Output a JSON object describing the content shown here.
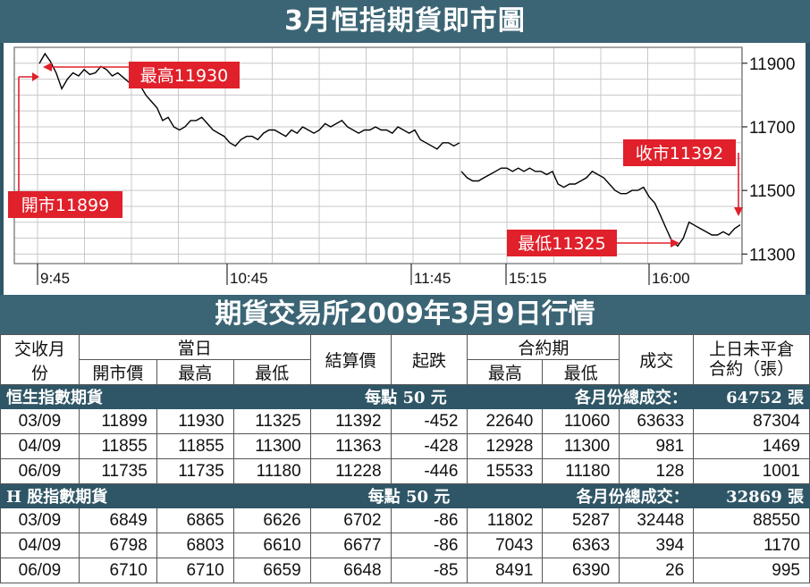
{
  "chart_title": "3月恒指期貨即市圖",
  "table_title": "期貨交易所2009年3月9日行情",
  "chart_data": {
    "type": "line",
    "x_ticks": [
      "9:45",
      "10:45",
      "11:45",
      "15:15",
      "16:00"
    ],
    "y_ticks": [
      11300,
      11500,
      11700,
      11900
    ],
    "ylim": [
      11270,
      11950
    ],
    "grid": true,
    "annotations": [
      {
        "label": "最高11930",
        "value": 11930
      },
      {
        "label": "開市11899",
        "value": 11899
      },
      {
        "label": "收市11392",
        "value": 11392
      },
      {
        "label": "最低11325",
        "value": 11325
      }
    ],
    "series": [
      {
        "values": [
          11899,
          11930,
          11905,
          11870,
          11820,
          11850,
          11870,
          11860,
          11880,
          11865,
          11870,
          11890,
          11880,
          11860,
          11870,
          11855,
          11840,
          11850,
          11830,
          11800,
          11780,
          11760,
          11720,
          11730,
          11700,
          11690,
          11700,
          11720,
          11720,
          11730,
          11710,
          11690,
          11680,
          11670,
          11650,
          11640,
          11660,
          11670,
          11670,
          11660,
          11680,
          11690,
          11690,
          11680,
          11670,
          11690,
          11680,
          11700,
          11690,
          11680,
          11690,
          11710,
          11700,
          11710,
          11720,
          11700,
          11690,
          11680,
          11690,
          11690,
          11700,
          11690,
          11690,
          11680,
          11700,
          11690,
          11680,
          11690,
          11660,
          11650,
          11640,
          11630,
          11650,
          11650,
          11640,
          11650,
          11560,
          11540,
          11530,
          11530,
          11540,
          11550,
          11560,
          11570,
          11570,
          11560,
          11570,
          11560,
          11570,
          11560,
          11560,
          11550,
          11560,
          11520,
          11510,
          11520,
          11520,
          11530,
          11540,
          11560,
          11550,
          11540,
          11520,
          11500,
          11490,
          11490,
          11500,
          11500,
          11510,
          11480,
          11460,
          11420,
          11380,
          11340,
          11325,
          11350,
          11400,
          11390,
          11380,
          11370,
          11360,
          11360,
          11370,
          11360,
          11380,
          11392
        ]
      }
    ]
  },
  "table": {
    "head1": [
      "交收月份",
      "當日",
      "結算價",
      "起跌",
      "合約期",
      "成交",
      "上日未平倉合約（張）"
    ],
    "head2": [
      "開市價",
      "最高",
      "最低",
      "最高",
      "最低"
    ],
    "groups": [
      {
        "name": "恒生指數期貨",
        "per_point": "每點 50 元",
        "total_label": "各月份總成交：",
        "total": "64752 張",
        "rows": [
          [
            "03/09",
            "11899",
            "11930",
            "11325",
            "11392",
            "-452",
            "22640",
            "11060",
            "63633",
            "87304"
          ],
          [
            "04/09",
            "11855",
            "11855",
            "11300",
            "11363",
            "-428",
            "12928",
            "11300",
            "981",
            "1469"
          ],
          [
            "06/09",
            "11735",
            "11735",
            "11180",
            "11228",
            "-446",
            "15533",
            "11180",
            "128",
            "1001"
          ]
        ]
      },
      {
        "name": "H 股指數期貨",
        "per_point": "每點 50 元",
        "total_label": "各月份總成交：",
        "total": "32869 張",
        "rows": [
          [
            "03/09",
            "6849",
            "6865",
            "6626",
            "6702",
            "-86",
            "11802",
            "5287",
            "32448",
            "88550"
          ],
          [
            "04/09",
            "6798",
            "6803",
            "6610",
            "6677",
            "-86",
            "7043",
            "6363",
            "394",
            "1170"
          ],
          [
            "06/09",
            "6710",
            "6710",
            "6659",
            "6648",
            "-85",
            "8491",
            "6390",
            "26",
            "995"
          ]
        ]
      }
    ]
  },
  "colors": {
    "header_bg": "#3b6575",
    "frame_bg": "#2f5666",
    "callout_red": "#e0202a",
    "line": "#000000"
  }
}
